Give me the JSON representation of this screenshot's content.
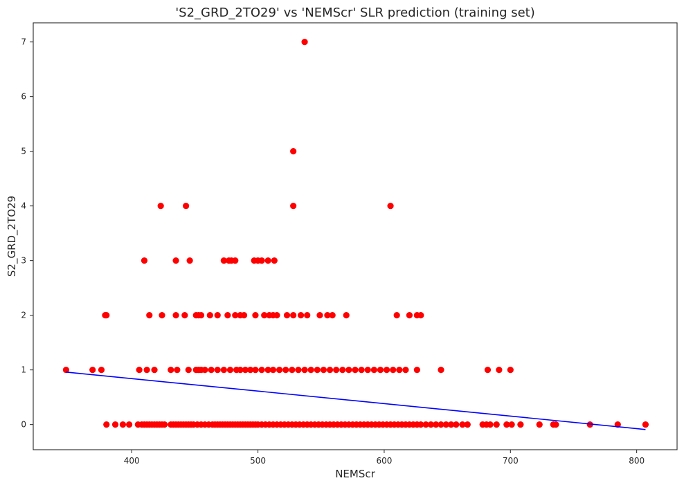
{
  "chart_data": {
    "type": "scatter",
    "title": "'S2_GRD_2TO29' vs 'NEMScr' SLR prediction (training set)",
    "xlabel": "NEMScr",
    "ylabel": "S2_GRD_2TO29",
    "xlim": [
      322,
      832
    ],
    "ylim": [
      -0.46,
      7.35
    ],
    "xticks": [
      400,
      500,
      600,
      700,
      800
    ],
    "yticks": [
      0,
      1,
      2,
      3,
      4,
      5,
      6,
      7
    ],
    "grid": false,
    "legend": "none",
    "colors": {
      "points": "#ff0000",
      "line": "#0000ff",
      "frame": "#262626"
    },
    "series": [
      {
        "kind": "scatter",
        "x": [
          380,
          387,
          393,
          398,
          405,
          408,
          410,
          412,
          414,
          416,
          418,
          420,
          422,
          424,
          426,
          431,
          433,
          435,
          437,
          439,
          441,
          443,
          445,
          447,
          449,
          452,
          455,
          458,
          461,
          464,
          466,
          468,
          470,
          472,
          474,
          476,
          478,
          480,
          482,
          484,
          486,
          488,
          490,
          492,
          494,
          496,
          498,
          500,
          503,
          506,
          509,
          512,
          515,
          518,
          521,
          524,
          527,
          530,
          533,
          536,
          539,
          542,
          545,
          548,
          551,
          554,
          557,
          560,
          563,
          566,
          569,
          572,
          575,
          578,
          581,
          584,
          587,
          590,
          593,
          596,
          599,
          602,
          605,
          608,
          611,
          614,
          617,
          620,
          623,
          626,
          629,
          633,
          637,
          641,
          645,
          649,
          653,
          657,
          662,
          666,
          678,
          681,
          684,
          689,
          697,
          701,
          708,
          723,
          734,
          736,
          763,
          785,
          807,
          348,
          369,
          376,
          406,
          412,
          418,
          431,
          436,
          445,
          451,
          453,
          455,
          458,
          463,
          468,
          473,
          478,
          483,
          486,
          490,
          494,
          498,
          503,
          508,
          512,
          517,
          522,
          527,
          532,
          537,
          542,
          547,
          552,
          557,
          562,
          567,
          572,
          577,
          582,
          587,
          592,
          597,
          602,
          607,
          612,
          617,
          626,
          645,
          682,
          691,
          700,
          379,
          380,
          414,
          424,
          435,
          442,
          451,
          453,
          455,
          462,
          468,
          476,
          482,
          486,
          489,
          498,
          505,
          509,
          512,
          515,
          523,
          528,
          534,
          539,
          549,
          555,
          559,
          570,
          610,
          620,
          626,
          629,
          410,
          435,
          446,
          473,
          477,
          479,
          482,
          497,
          500,
          503,
          508,
          513,
          423,
          443,
          528,
          605,
          528,
          537
        ],
        "y": [
          0,
          0,
          0,
          0,
          0,
          0,
          0,
          0,
          0,
          0,
          0,
          0,
          0,
          0,
          0,
          0,
          0,
          0,
          0,
          0,
          0,
          0,
          0,
          0,
          0,
          0,
          0,
          0,
          0,
          0,
          0,
          0,
          0,
          0,
          0,
          0,
          0,
          0,
          0,
          0,
          0,
          0,
          0,
          0,
          0,
          0,
          0,
          0,
          0,
          0,
          0,
          0,
          0,
          0,
          0,
          0,
          0,
          0,
          0,
          0,
          0,
          0,
          0,
          0,
          0,
          0,
          0,
          0,
          0,
          0,
          0,
          0,
          0,
          0,
          0,
          0,
          0,
          0,
          0,
          0,
          0,
          0,
          0,
          0,
          0,
          0,
          0,
          0,
          0,
          0,
          0,
          0,
          0,
          0,
          0,
          0,
          0,
          0,
          0,
          0,
          0,
          0,
          0,
          0,
          0,
          0,
          0,
          0,
          0,
          0,
          0,
          0,
          0,
          1,
          1,
          1,
          1,
          1,
          1,
          1,
          1,
          1,
          1,
          1,
          1,
          1,
          1,
          1,
          1,
          1,
          1,
          1,
          1,
          1,
          1,
          1,
          1,
          1,
          1,
          1,
          1,
          1,
          1,
          1,
          1,
          1,
          1,
          1,
          1,
          1,
          1,
          1,
          1,
          1,
          1,
          1,
          1,
          1,
          1,
          1,
          1,
          1,
          1,
          1,
          2,
          2,
          2,
          2,
          2,
          2,
          2,
          2,
          2,
          2,
          2,
          2,
          2,
          2,
          2,
          2,
          2,
          2,
          2,
          2,
          2,
          2,
          2,
          2,
          2,
          2,
          2,
          2,
          2,
          2,
          2,
          2,
          3,
          3,
          3,
          3,
          3,
          3,
          3,
          3,
          3,
          3,
          3,
          3,
          4,
          4,
          4,
          4,
          5,
          7
        ]
      },
      {
        "kind": "line",
        "x": [
          348,
          807
        ],
        "y": [
          0.96,
          -0.09
        ]
      }
    ]
  }
}
